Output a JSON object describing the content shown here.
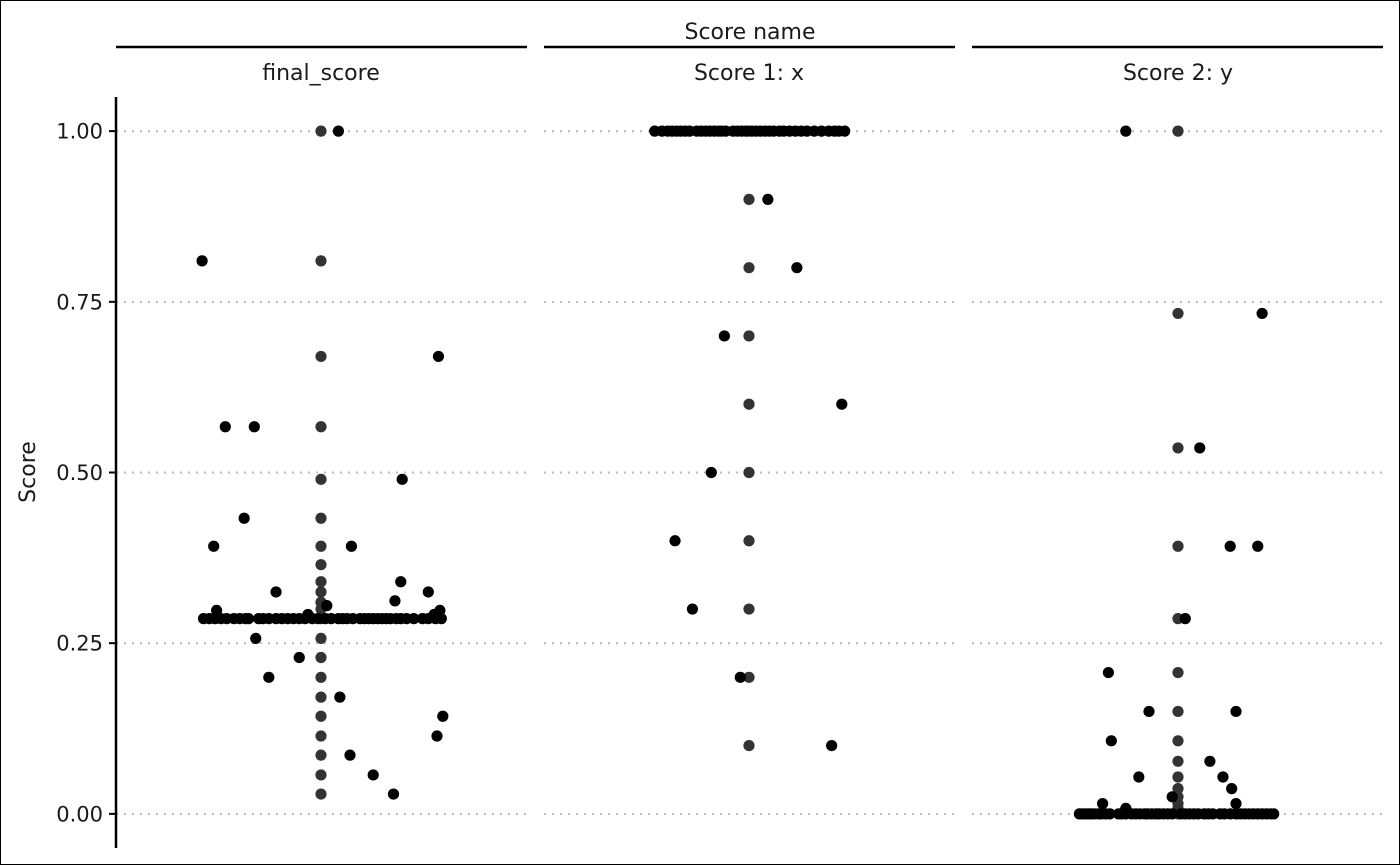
{
  "chart_data": {
    "type": "scatter",
    "strip_title": "Score name",
    "ylabel": "Score",
    "ylim": [
      -0.05,
      1.05
    ],
    "yticks": [
      0.0,
      0.25,
      0.5,
      0.75,
      1.0
    ],
    "ytick_labels": [
      "0.00",
      "0.25",
      "0.50",
      "0.75",
      "1.00"
    ],
    "grid": "horizontal-dotted",
    "colors": {
      "point": "#000000",
      "center_point": "#333333",
      "grid": "#bbbbbb"
    },
    "panels": [
      {
        "name": "final_score",
        "center_points": [
          1.0,
          0.81,
          0.67,
          0.567,
          0.49,
          0.433,
          0.392,
          0.365,
          0.34,
          0.325,
          0.31,
          0.3,
          0.286,
          0.257,
          0.229,
          0.2,
          0.171,
          0.143,
          0.114,
          0.086,
          0.057,
          0.029
        ],
        "points": [
          {
            "x": -0.82,
            "y": 0.81
          },
          {
            "x": 0.12,
            "y": 1.0
          },
          {
            "x": -0.66,
            "y": 0.567
          },
          {
            "x": -0.46,
            "y": 0.567
          },
          {
            "x": -0.53,
            "y": 0.433
          },
          {
            "x": -0.74,
            "y": 0.392
          },
          {
            "x": 0.21,
            "y": 0.392
          },
          {
            "x": 0.81,
            "y": 0.67
          },
          {
            "x": 0.56,
            "y": 0.49
          },
          {
            "x": 0.55,
            "y": 0.34
          },
          {
            "x": 0.74,
            "y": 0.325
          },
          {
            "x": -0.31,
            "y": 0.325
          },
          {
            "x": 0.51,
            "y": 0.312
          },
          {
            "x": -0.72,
            "y": 0.298
          },
          {
            "x": 0.04,
            "y": 0.305
          },
          {
            "x": 0.82,
            "y": 0.298
          },
          {
            "x": -0.09,
            "y": 0.292
          },
          {
            "x": 0.78,
            "y": 0.292
          },
          {
            "x": -0.45,
            "y": 0.257
          },
          {
            "x": -0.15,
            "y": 0.229
          },
          {
            "x": -0.36,
            "y": 0.2
          },
          {
            "x": 0.13,
            "y": 0.171
          },
          {
            "x": 0.84,
            "y": 0.143
          },
          {
            "x": 0.8,
            "y": 0.114
          },
          {
            "x": 0.2,
            "y": 0.086
          },
          {
            "x": 0.36,
            "y": 0.057
          },
          {
            "x": 0.5,
            "y": 0.029
          },
          {
            "x": -0.81,
            "y": 0.286
          },
          {
            "x": -0.77,
            "y": 0.286
          },
          {
            "x": -0.73,
            "y": 0.286
          },
          {
            "x": -0.69,
            "y": 0.286
          },
          {
            "x": -0.65,
            "y": 0.286
          },
          {
            "x": -0.6,
            "y": 0.286
          },
          {
            "x": -0.56,
            "y": 0.286
          },
          {
            "x": -0.52,
            "y": 0.286
          },
          {
            "x": -0.5,
            "y": 0.286
          },
          {
            "x": -0.43,
            "y": 0.286
          },
          {
            "x": -0.4,
            "y": 0.286
          },
          {
            "x": -0.36,
            "y": 0.286
          },
          {
            "x": -0.31,
            "y": 0.286
          },
          {
            "x": -0.27,
            "y": 0.286
          },
          {
            "x": -0.23,
            "y": 0.286
          },
          {
            "x": -0.19,
            "y": 0.286
          },
          {
            "x": -0.15,
            "y": 0.286
          },
          {
            "x": -0.11,
            "y": 0.286
          },
          {
            "x": -0.06,
            "y": 0.286
          },
          {
            "x": -0.02,
            "y": 0.286
          },
          {
            "x": 0.03,
            "y": 0.286
          },
          {
            "x": 0.07,
            "y": 0.286
          },
          {
            "x": 0.12,
            "y": 0.286
          },
          {
            "x": 0.15,
            "y": 0.286
          },
          {
            "x": 0.18,
            "y": 0.286
          },
          {
            "x": 0.22,
            "y": 0.286
          },
          {
            "x": 0.27,
            "y": 0.286
          },
          {
            "x": 0.3,
            "y": 0.286
          },
          {
            "x": 0.33,
            "y": 0.286
          },
          {
            "x": 0.36,
            "y": 0.286
          },
          {
            "x": 0.39,
            "y": 0.286
          },
          {
            "x": 0.42,
            "y": 0.286
          },
          {
            "x": 0.45,
            "y": 0.286
          },
          {
            "x": 0.48,
            "y": 0.286
          },
          {
            "x": 0.52,
            "y": 0.286
          },
          {
            "x": 0.55,
            "y": 0.286
          },
          {
            "x": 0.59,
            "y": 0.286
          },
          {
            "x": 0.64,
            "y": 0.286
          },
          {
            "x": 0.7,
            "y": 0.286
          },
          {
            "x": 0.74,
            "y": 0.286
          },
          {
            "x": 0.79,
            "y": 0.286
          },
          {
            "x": 0.83,
            "y": 0.286
          }
        ]
      },
      {
        "name": "Score 1: x",
        "center_points": [
          1.0,
          0.9,
          0.8,
          0.7,
          0.6,
          0.5,
          0.4,
          0.3,
          0.2,
          0.1
        ],
        "points": [
          {
            "x": 0.13,
            "y": 0.9
          },
          {
            "x": 0.33,
            "y": 0.8
          },
          {
            "x": -0.17,
            "y": 0.7
          },
          {
            "x": 0.64,
            "y": 0.6
          },
          {
            "x": -0.26,
            "y": 0.5
          },
          {
            "x": -0.51,
            "y": 0.4
          },
          {
            "x": -0.39,
            "y": 0.3
          },
          {
            "x": -0.06,
            "y": 0.2
          },
          {
            "x": 0.57,
            "y": 0.1
          },
          {
            "x": -0.65,
            "y": 1.0
          },
          {
            "x": -0.6,
            "y": 1.0
          },
          {
            "x": -0.56,
            "y": 1.0
          },
          {
            "x": -0.53,
            "y": 1.0
          },
          {
            "x": -0.5,
            "y": 1.0
          },
          {
            "x": -0.47,
            "y": 1.0
          },
          {
            "x": -0.44,
            "y": 1.0
          },
          {
            "x": -0.41,
            "y": 1.0
          },
          {
            "x": -0.36,
            "y": 1.0
          },
          {
            "x": -0.33,
            "y": 1.0
          },
          {
            "x": -0.3,
            "y": 1.0
          },
          {
            "x": -0.27,
            "y": 1.0
          },
          {
            "x": -0.24,
            "y": 1.0
          },
          {
            "x": -0.21,
            "y": 1.0
          },
          {
            "x": -0.19,
            "y": 1.0
          },
          {
            "x": -0.16,
            "y": 1.0
          },
          {
            "x": -0.11,
            "y": 1.0
          },
          {
            "x": -0.08,
            "y": 1.0
          },
          {
            "x": -0.05,
            "y": 1.0
          },
          {
            "x": -0.02,
            "y": 1.0
          },
          {
            "x": 0.02,
            "y": 1.0
          },
          {
            "x": 0.05,
            "y": 1.0
          },
          {
            "x": 0.08,
            "y": 1.0
          },
          {
            "x": 0.11,
            "y": 1.0
          },
          {
            "x": 0.14,
            "y": 1.0
          },
          {
            "x": 0.17,
            "y": 1.0
          },
          {
            "x": 0.21,
            "y": 1.0
          },
          {
            "x": 0.24,
            "y": 1.0
          },
          {
            "x": 0.28,
            "y": 1.0
          },
          {
            "x": 0.32,
            "y": 1.0
          },
          {
            "x": 0.36,
            "y": 1.0
          },
          {
            "x": 0.4,
            "y": 1.0
          },
          {
            "x": 0.45,
            "y": 1.0
          },
          {
            "x": 0.5,
            "y": 1.0
          },
          {
            "x": 0.55,
            "y": 1.0
          },
          {
            "x": 0.59,
            "y": 1.0
          },
          {
            "x": 0.62,
            "y": 1.0
          },
          {
            "x": 0.66,
            "y": 1.0
          }
        ]
      },
      {
        "name": "Score 2: y",
        "center_points": [
          1.0,
          0.733,
          0.536,
          0.392,
          0.286,
          0.207,
          0.15,
          0.107,
          0.077,
          0.054,
          0.037,
          0.025,
          0.015,
          0.008,
          0.0
        ],
        "points": [
          {
            "x": -0.36,
            "y": 1.0
          },
          {
            "x": 0.58,
            "y": 0.733
          },
          {
            "x": 0.15,
            "y": 0.536
          },
          {
            "x": 0.36,
            "y": 0.392
          },
          {
            "x": 0.55,
            "y": 0.392
          },
          {
            "x": 0.05,
            "y": 0.286
          },
          {
            "x": -0.48,
            "y": 0.207
          },
          {
            "x": -0.2,
            "y": 0.15
          },
          {
            "x": 0.4,
            "y": 0.15
          },
          {
            "x": -0.46,
            "y": 0.107
          },
          {
            "x": 0.22,
            "y": 0.077
          },
          {
            "x": -0.27,
            "y": 0.054
          },
          {
            "x": 0.31,
            "y": 0.054
          },
          {
            "x": 0.37,
            "y": 0.037
          },
          {
            "x": 0.4,
            "y": 0.015
          },
          {
            "x": -0.52,
            "y": 0.015
          },
          {
            "x": -0.36,
            "y": 0.008
          },
          {
            "x": -0.04,
            "y": 0.025
          },
          {
            "x": -0.68,
            "y": 0.0
          },
          {
            "x": -0.66,
            "y": 0.0
          },
          {
            "x": -0.64,
            "y": 0.0
          },
          {
            "x": -0.62,
            "y": 0.0
          },
          {
            "x": -0.6,
            "y": 0.0
          },
          {
            "x": -0.58,
            "y": 0.0
          },
          {
            "x": -0.55,
            "y": 0.0
          },
          {
            "x": -0.53,
            "y": 0.0
          },
          {
            "x": -0.5,
            "y": 0.0
          },
          {
            "x": -0.47,
            "y": 0.0
          },
          {
            "x": -0.41,
            "y": 0.0
          },
          {
            "x": -0.39,
            "y": 0.0
          },
          {
            "x": -0.36,
            "y": 0.0
          },
          {
            "x": -0.32,
            "y": 0.0
          },
          {
            "x": -0.29,
            "y": 0.0
          },
          {
            "x": -0.26,
            "y": 0.0
          },
          {
            "x": -0.23,
            "y": 0.0
          },
          {
            "x": -0.21,
            "y": 0.0
          },
          {
            "x": -0.18,
            "y": 0.0
          },
          {
            "x": -0.15,
            "y": 0.0
          },
          {
            "x": -0.13,
            "y": 0.0
          },
          {
            "x": -0.1,
            "y": 0.0
          },
          {
            "x": -0.07,
            "y": 0.0
          },
          {
            "x": -0.04,
            "y": 0.0
          },
          {
            "x": 0.02,
            "y": 0.0
          },
          {
            "x": 0.05,
            "y": 0.0
          },
          {
            "x": 0.08,
            "y": 0.0
          },
          {
            "x": 0.11,
            "y": 0.0
          },
          {
            "x": 0.14,
            "y": 0.0
          },
          {
            "x": 0.18,
            "y": 0.0
          },
          {
            "x": 0.21,
            "y": 0.0
          },
          {
            "x": 0.24,
            "y": 0.0
          },
          {
            "x": 0.29,
            "y": 0.0
          },
          {
            "x": 0.32,
            "y": 0.0
          },
          {
            "x": 0.36,
            "y": 0.0
          },
          {
            "x": 0.4,
            "y": 0.0
          },
          {
            "x": 0.43,
            "y": 0.0
          },
          {
            "x": 0.46,
            "y": 0.0
          },
          {
            "x": 0.49,
            "y": 0.0
          },
          {
            "x": 0.52,
            "y": 0.0
          },
          {
            "x": 0.55,
            "y": 0.0
          },
          {
            "x": 0.58,
            "y": 0.0
          },
          {
            "x": 0.61,
            "y": 0.0
          },
          {
            "x": 0.64,
            "y": 0.0
          },
          {
            "x": 0.66,
            "y": 0.0
          }
        ]
      }
    ]
  }
}
